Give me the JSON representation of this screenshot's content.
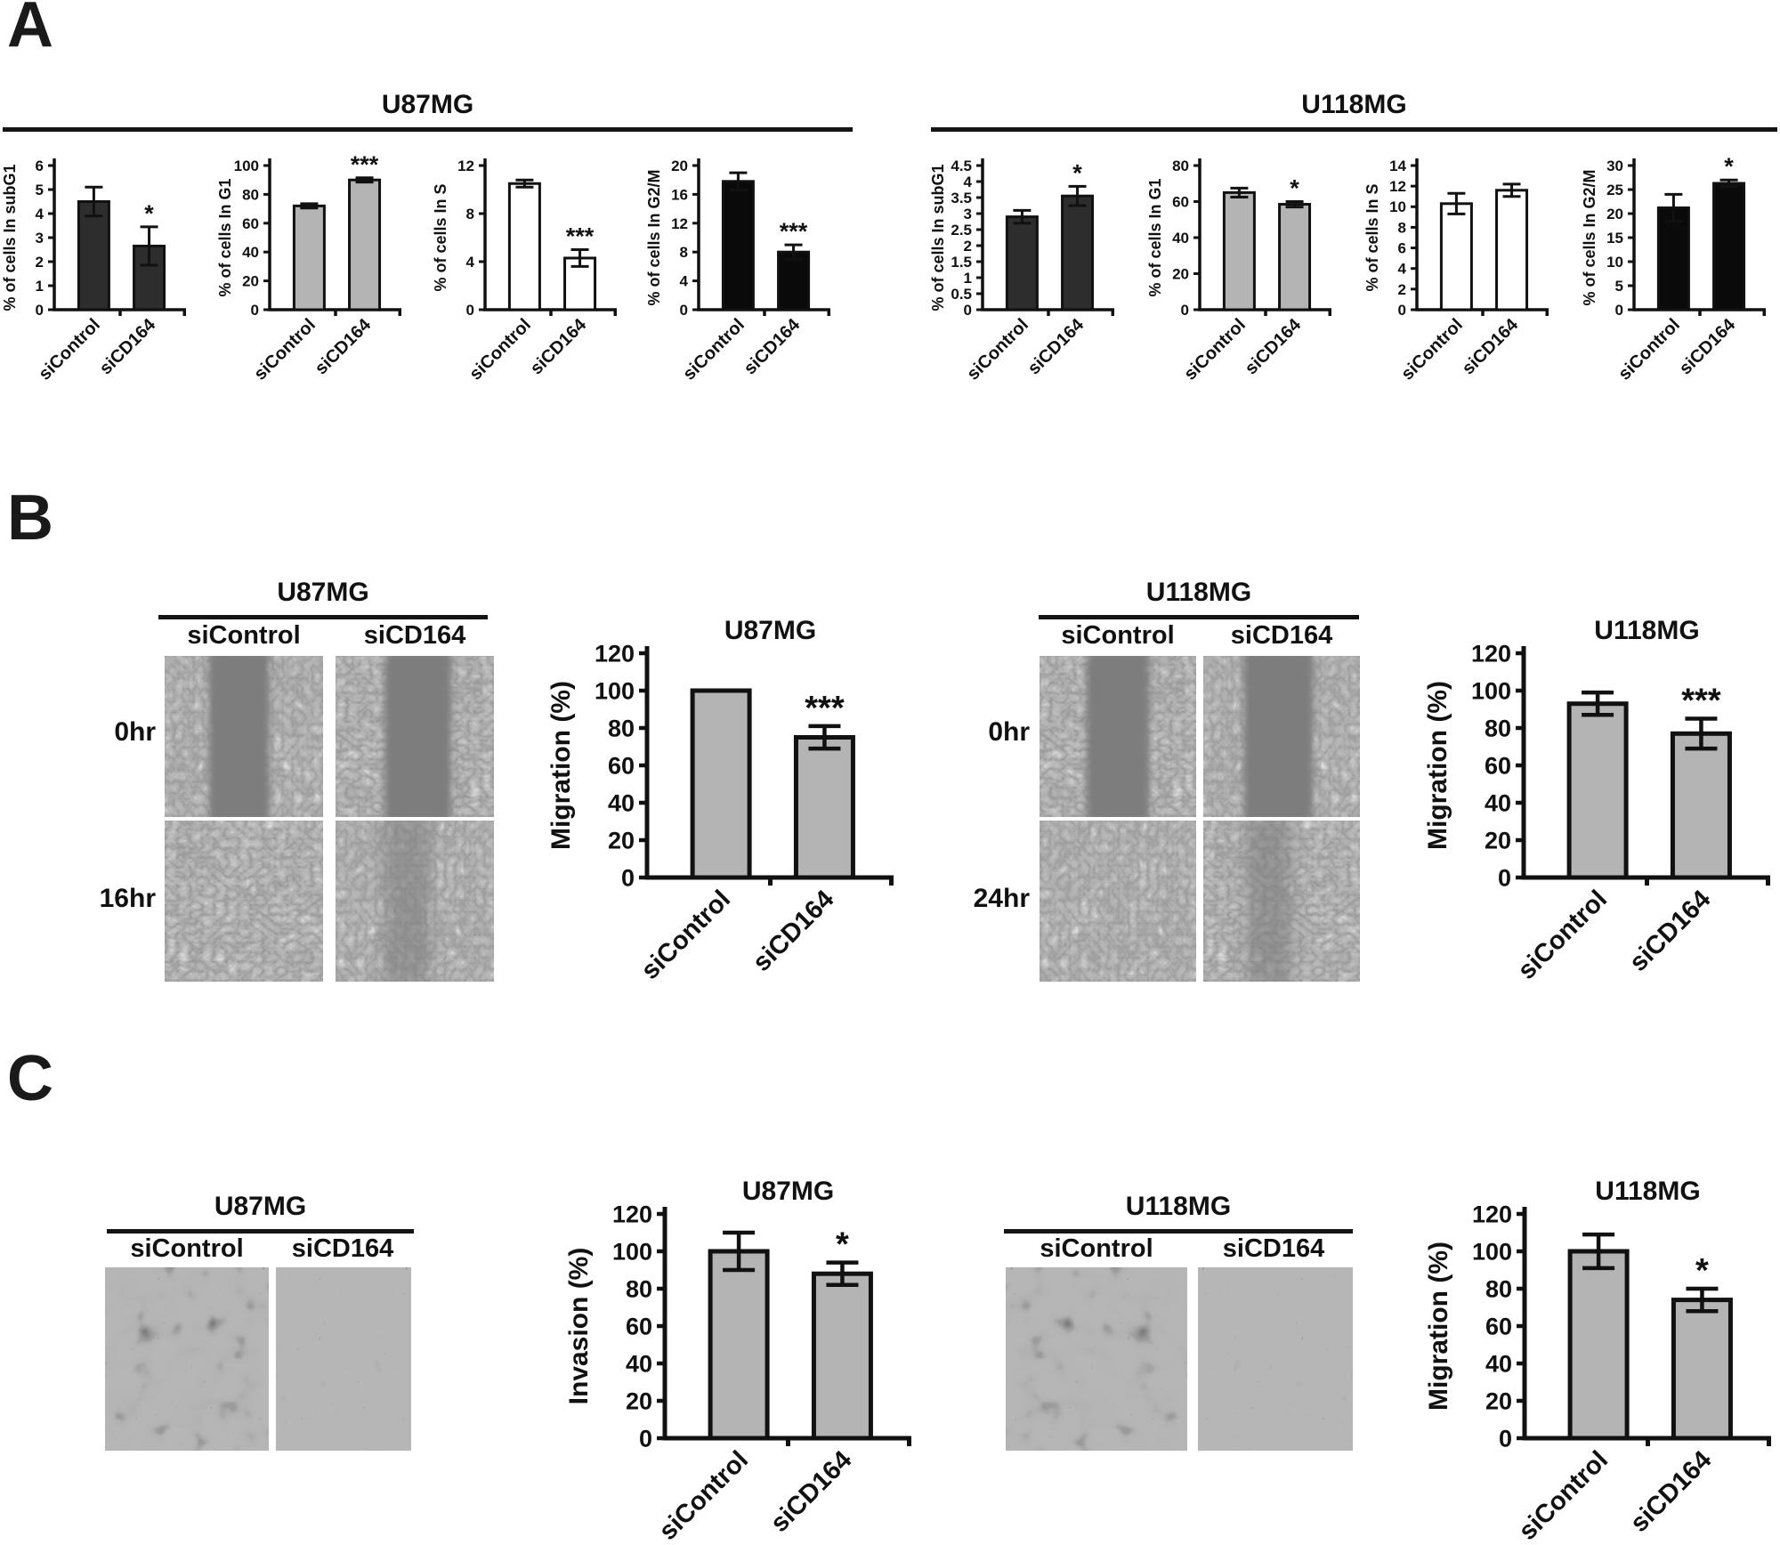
{
  "panels": {
    "a": {
      "label": "A",
      "groups": [
        {
          "title": "U87MG",
          "chart_ids": [
            "a_u87_subg1",
            "a_u87_g1",
            "a_u87_s",
            "a_u87_g2m"
          ]
        },
        {
          "title": "U118MG",
          "chart_ids": [
            "a_u118_subg1",
            "a_u118_g1",
            "a_u118_s",
            "a_u118_g2m"
          ]
        }
      ]
    },
    "b": {
      "label": "B",
      "groups": [
        {
          "title": "U87MG",
          "col_labels": [
            "siControl",
            "siCD164"
          ],
          "row_labels": [
            "0hr",
            "16hr"
          ],
          "chart_id": "b_u87_migration"
        },
        {
          "title": "U118MG",
          "col_labels": [
            "siControl",
            "siCD164"
          ],
          "row_labels": [
            "0hr",
            "24hr"
          ],
          "chart_id": "b_u118_migration"
        }
      ]
    },
    "c": {
      "label": "C",
      "groups": [
        {
          "title": "U87MG",
          "col_labels": [
            "siControl",
            "siCD164"
          ],
          "chart_id": "c_u87_invasion"
        },
        {
          "title": "U118MG",
          "col_labels": [
            "siControl",
            "siCD164"
          ],
          "chart_id": "c_u118_migration"
        }
      ]
    }
  },
  "colors": {
    "axis": "#111111",
    "bar_dark_gray": "#2d2d2d",
    "bar_light_gray": "#b4b4b4",
    "bar_white": "#ffffff",
    "bar_black": "#0a0a0a"
  },
  "chart_data": [
    {
      "id": "a_u87_subg1",
      "type": "bar",
      "panel": "A",
      "group": "U87MG",
      "title": null,
      "ylabel": "% of cells In subG1",
      "ylim": [
        0,
        6
      ],
      "ystep": 1,
      "categories": [
        "siControl",
        "siCD164"
      ],
      "values": [
        4.5,
        2.65
      ],
      "errors": [
        0.6,
        0.8
      ],
      "sig_index": 1,
      "sig_label": "*",
      "bar_fill": "#2d2d2d"
    },
    {
      "id": "a_u87_g1",
      "type": "bar",
      "panel": "A",
      "group": "U87MG",
      "title": null,
      "ylabel": "% of cells In G1",
      "ylim": [
        0,
        100
      ],
      "ystep": 20,
      "categories": [
        "siControl",
        "siCD164"
      ],
      "values": [
        72,
        90
      ],
      "errors": [
        1.5,
        1.5
      ],
      "sig_index": 1,
      "sig_label": "***",
      "bar_fill": "#b4b4b4"
    },
    {
      "id": "a_u87_s",
      "type": "bar",
      "panel": "A",
      "group": "U87MG",
      "title": null,
      "ylabel": "% of cells In S",
      "ylim": [
        0,
        12
      ],
      "ystep": 4,
      "categories": [
        "siControl",
        "siCD164"
      ],
      "values": [
        10.5,
        4.3
      ],
      "errors": [
        0.3,
        0.7
      ],
      "sig_index": 1,
      "sig_label": "***",
      "bar_fill": "#ffffff"
    },
    {
      "id": "a_u87_g2m",
      "type": "bar",
      "panel": "A",
      "group": "U87MG",
      "title": null,
      "ylabel": "% of cells In G2/M",
      "ylim": [
        0,
        20
      ],
      "ystep": 4,
      "categories": [
        "siControl",
        "siCD164"
      ],
      "values": [
        17.8,
        8.0
      ],
      "errors": [
        1.2,
        1.0
      ],
      "sig_index": 1,
      "sig_label": "***",
      "bar_fill": "#0a0a0a"
    },
    {
      "id": "a_u118_subg1",
      "type": "bar",
      "panel": "A",
      "group": "U118MG",
      "title": null,
      "ylabel": "% of cells In subG1",
      "ylim": [
        0,
        4.5
      ],
      "ystep": 0.5,
      "categories": [
        "siControl",
        "siCD164"
      ],
      "values": [
        2.9,
        3.55
      ],
      "errors": [
        0.2,
        0.3
      ],
      "sig_index": 1,
      "sig_label": "*",
      "bar_fill": "#2d2d2d"
    },
    {
      "id": "a_u118_g1",
      "type": "bar",
      "panel": "A",
      "group": "U118MG",
      "title": null,
      "ylabel": "% of cells In G1",
      "ylim": [
        0,
        80
      ],
      "ystep": 20,
      "categories": [
        "siControl",
        "siCD164"
      ],
      "values": [
        65,
        58.5
      ],
      "errors": [
        2.5,
        1.5
      ],
      "sig_index": 1,
      "sig_label": "*",
      "bar_fill": "#b4b4b4"
    },
    {
      "id": "a_u118_s",
      "type": "bar",
      "panel": "A",
      "group": "U118MG",
      "title": null,
      "ylabel": "% of cells In S",
      "ylim": [
        0,
        14
      ],
      "ystep": 2,
      "categories": [
        "siControl",
        "siCD164"
      ],
      "values": [
        10.3,
        11.6
      ],
      "errors": [
        1.0,
        0.6
      ],
      "sig_index": null,
      "sig_label": null,
      "bar_fill": "#ffffff"
    },
    {
      "id": "a_u118_g2m",
      "type": "bar",
      "panel": "A",
      "group": "U118MG",
      "title": null,
      "ylabel": "% of cells In G2/M",
      "ylim": [
        0,
        30
      ],
      "ystep": 5,
      "categories": [
        "siControl",
        "siCD164"
      ],
      "values": [
        21.2,
        26.3
      ],
      "errors": [
        2.8,
        0.7
      ],
      "sig_index": 1,
      "sig_label": "*",
      "bar_fill": "#0a0a0a"
    },
    {
      "id": "b_u87_migration",
      "type": "bar",
      "panel": "B",
      "group": "U87MG",
      "title": "U87MG",
      "ylabel": "Migration (%)",
      "ylim": [
        0,
        120
      ],
      "ystep": 20,
      "categories": [
        "siControl",
        "siCD164"
      ],
      "values": [
        100,
        75
      ],
      "errors": [
        0,
        6
      ],
      "sig_index": 1,
      "sig_label": "***",
      "bar_fill": "#b4b4b4"
    },
    {
      "id": "b_u118_migration",
      "type": "bar",
      "panel": "B",
      "group": "U118MG",
      "title": "U118MG",
      "ylabel": "Migration (%)",
      "ylim": [
        0,
        120
      ],
      "ystep": 20,
      "categories": [
        "siControl",
        "siCD164"
      ],
      "values": [
        93,
        77
      ],
      "errors": [
        6,
        8
      ],
      "sig_index": 1,
      "sig_label": "***",
      "bar_fill": "#b4b4b4"
    },
    {
      "id": "c_u87_invasion",
      "type": "bar",
      "panel": "C",
      "group": "U87MG",
      "title": "U87MG",
      "ylabel": "Invasion (%)",
      "ylim": [
        0,
        120
      ],
      "ystep": 20,
      "categories": [
        "siControl",
        "siCD164"
      ],
      "values": [
        100,
        88
      ],
      "errors": [
        10,
        6
      ],
      "sig_index": 1,
      "sig_label": "*",
      "bar_fill": "#b4b4b4"
    },
    {
      "id": "c_u118_migration",
      "type": "bar",
      "panel": "C",
      "group": "U118MG",
      "title": "U118MG",
      "ylabel": "Migration (%)",
      "ylim": [
        0,
        120
      ],
      "ystep": 20,
      "categories": [
        "siControl",
        "siCD164"
      ],
      "values": [
        100,
        74
      ],
      "errors": [
        9,
        6
      ],
      "sig_index": 1,
      "sig_label": "*",
      "bar_fill": "#b4b4b4"
    }
  ]
}
